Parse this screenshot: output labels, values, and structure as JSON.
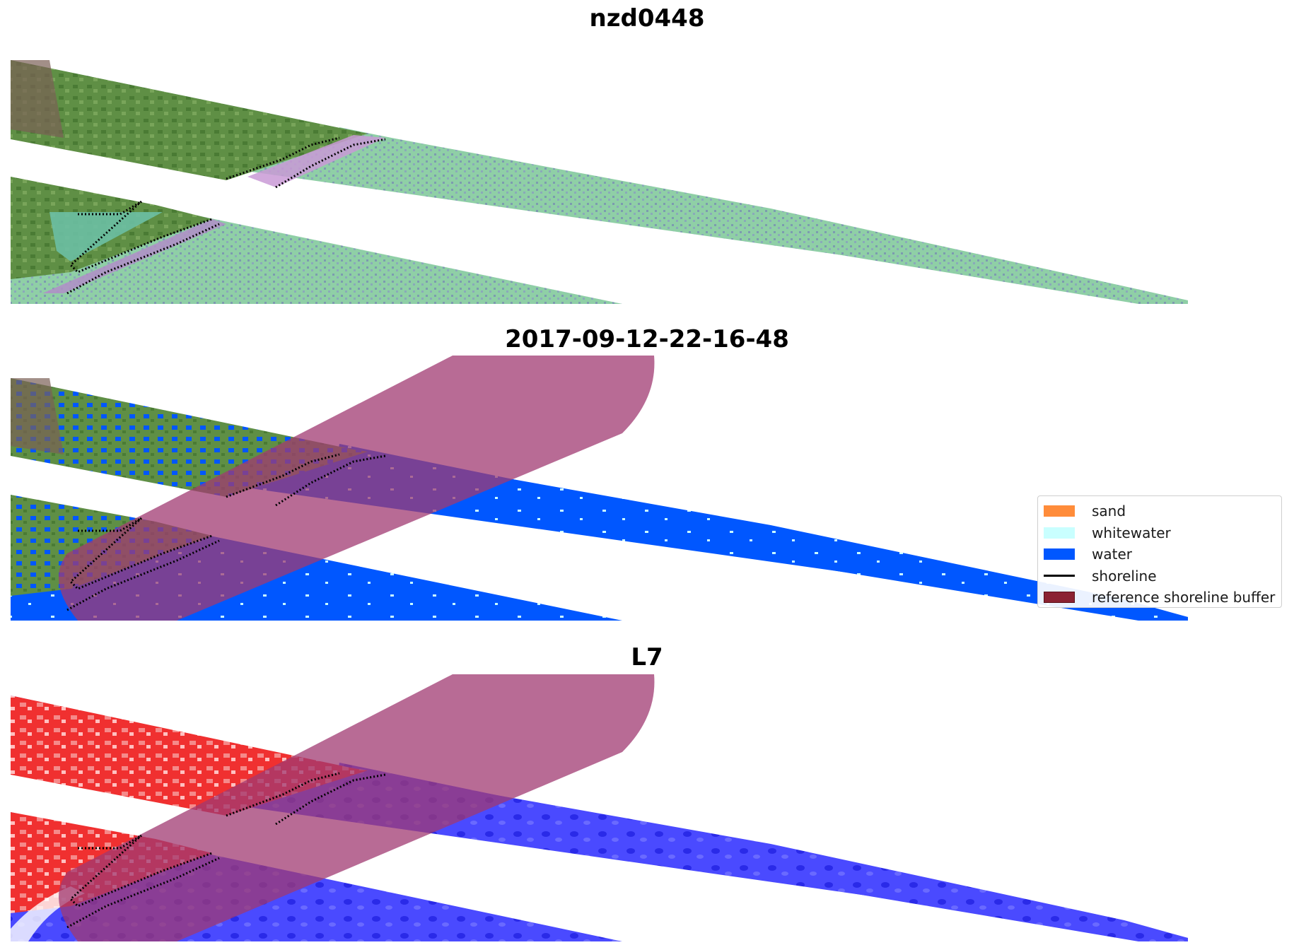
{
  "titles": {
    "top": "nzd0448",
    "middle": "2017-09-12-22-16-48",
    "bottom": "L7"
  },
  "legend": {
    "items": [
      {
        "label": "sand",
        "color": "#ff8c3a",
        "kind": "patch"
      },
      {
        "label": "whitewater",
        "color": "#c9ffff",
        "kind": "patch"
      },
      {
        "label": "water",
        "color": "#0057ff",
        "kind": "patch"
      },
      {
        "label": "shoreline",
        "color": "#000000",
        "kind": "line"
      },
      {
        "label": "reference shoreline buffer",
        "color": "#8b2232",
        "kind": "patch"
      }
    ]
  },
  "colors": {
    "vegetation": "#5f8f45",
    "ocean_rgb": "#8fcfa6",
    "water_class": "#0057ff",
    "whitewater_class": "#c9ffff",
    "buffer": "#b05080",
    "index_land": "#f03030",
    "index_water": "#3a3aff"
  }
}
